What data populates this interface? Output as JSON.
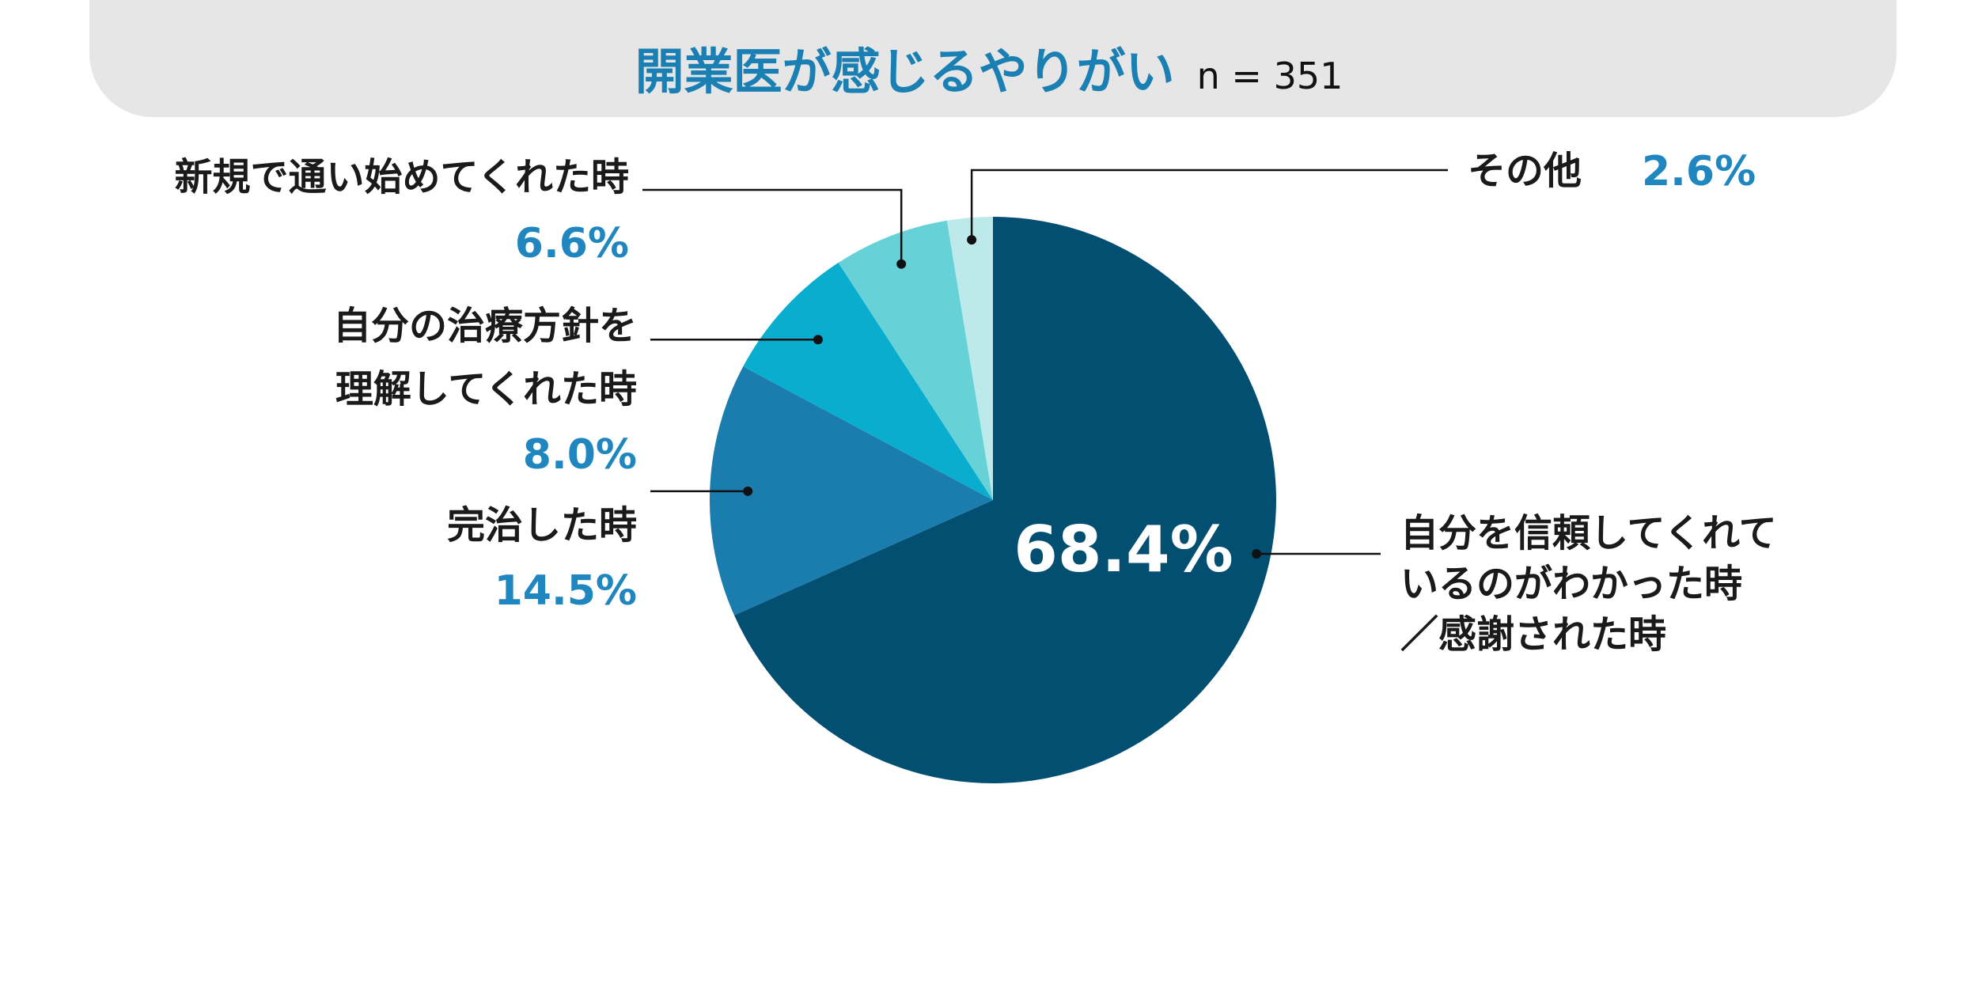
{
  "header": {
    "title": "開業医が感じるやりがい",
    "sample_size": "n = 351"
  },
  "chart_data": {
    "type": "pie",
    "title": "開業医が感じるやりがい",
    "subtitle": "n = 351",
    "slices": [
      {
        "label_lines": [
          "自分を信頼してくれて",
          "いるのがわかった時",
          "／感謝された時"
        ],
        "value": 68.4,
        "display": "68.4%",
        "color": "#034f72"
      },
      {
        "label_lines": [
          "完治した時"
        ],
        "value": 14.5,
        "display": "14.5%",
        "color": "#1b7dae"
      },
      {
        "label_lines": [
          "自分の治療方針を",
          "理解してくれた時"
        ],
        "value": 8.0,
        "display": "8.0%",
        "color": "#09adce"
      },
      {
        "label_lines": [
          "新規で通い始めてくれた時"
        ],
        "value": 6.6,
        "display": "6.6%",
        "color": "#66d2d8"
      },
      {
        "label_lines": [
          "その他"
        ],
        "value": 2.6,
        "display": "2.6%",
        "color": "#bde9ea"
      }
    ]
  }
}
